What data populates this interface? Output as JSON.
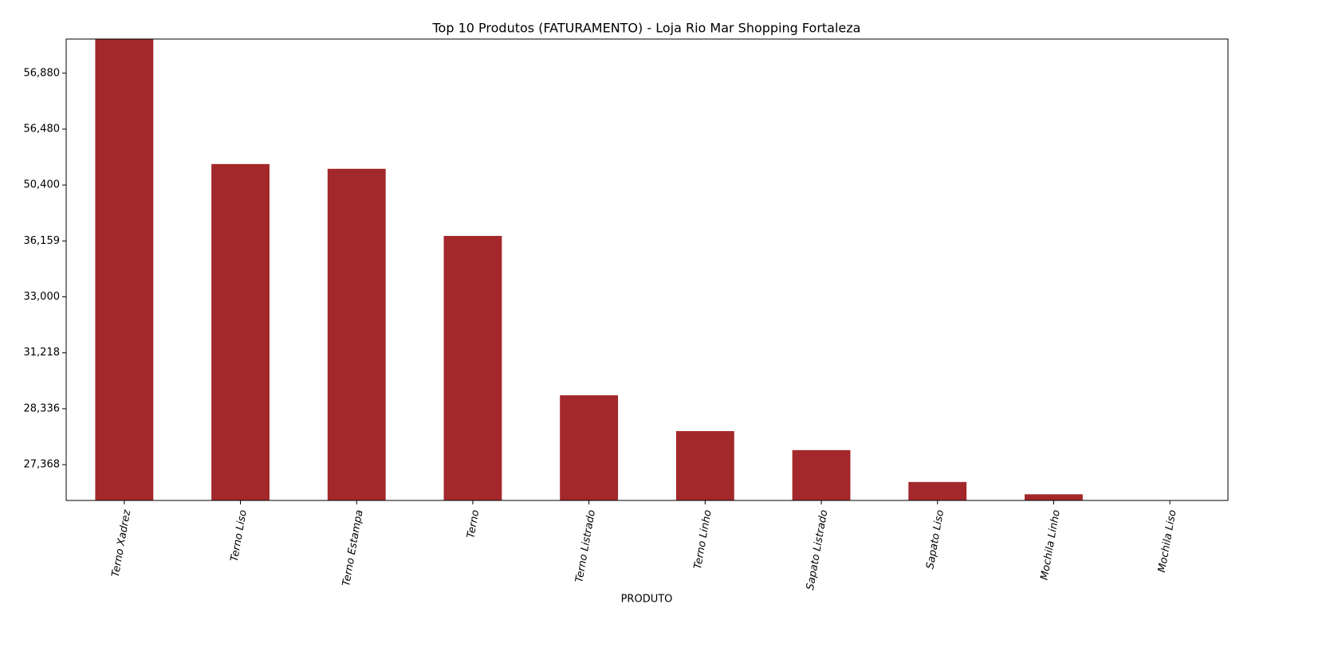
{
  "chart_data": {
    "type": "bar",
    "title": "Top 10 Produtos (FATURAMENTO) - Loja Rio Mar Shopping Fortaleza",
    "x_label": "PRODUTO",
    "categories": [
      "Terno Xadrez",
      "Terno Liso",
      "Terno Estampa",
      "Terno",
      "Terno Listrado",
      "Terno Linho",
      "Sapato Listrado",
      "Sapato Liso",
      "Mochila Linho",
      "Mochila Liso"
    ],
    "values": [
      8.61,
      6.375,
      6.29,
      5.09,
      2.24,
      1.6,
      1.26,
      0.69,
      0.47,
      0.36
    ],
    "color": "#a3282b",
    "ylim": [
      0.36,
      8.61
    ],
    "yticks": [
      {
        "value": 1,
        "label": "27,368"
      },
      {
        "value": 2,
        "label": "28,336"
      },
      {
        "value": 3,
        "label": "31,218"
      },
      {
        "value": 4,
        "label": "33,000"
      },
      {
        "value": 5,
        "label": "36,159"
      },
      {
        "value": 6,
        "label": "50,400"
      },
      {
        "value": 7,
        "label": "56,480"
      },
      {
        "value": 8,
        "label": "56,880"
      }
    ],
    "grid": false
  }
}
